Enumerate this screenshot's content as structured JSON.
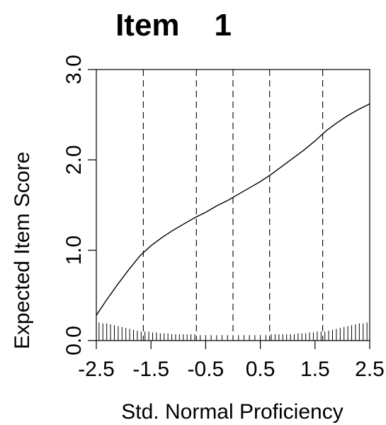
{
  "chart_data": {
    "type": "line",
    "title": "Item    1",
    "xlabel": "Std. Normal Proficiency",
    "ylabel": "Expected Item Score",
    "xlim": [
      -2.5,
      2.5
    ],
    "ylim": [
      0.0,
      3.0
    ],
    "x_ticks": [
      -2.5,
      -1.5,
      -0.5,
      0.5,
      1.5,
      2.5
    ],
    "x_tick_labels": [
      "-2.5",
      "-1.5",
      "-0.5",
      "0.5",
      "1.5",
      "2.5"
    ],
    "y_ticks": [
      0.0,
      1.0,
      2.0,
      3.0
    ],
    "y_tick_labels": [
      "0.0",
      "1.0",
      "2.0",
      "3.0"
    ],
    "grid": false,
    "reference_lines_x": [
      -1.64,
      -0.67,
      0.0,
      0.67,
      1.64
    ],
    "series": [
      {
        "x": [
          -2.5,
          -2.3,
          -2.1,
          -1.9,
          -1.7,
          -1.5,
          -1.3,
          -1.1,
          -0.9,
          -0.7,
          -0.5,
          -0.3,
          -0.1,
          0.1,
          0.3,
          0.5,
          0.7,
          0.9,
          1.1,
          1.3,
          1.5,
          1.7,
          1.9,
          2.1,
          2.3,
          2.5
        ],
        "y": [
          0.28,
          0.46,
          0.63,
          0.79,
          0.94,
          1.05,
          1.14,
          1.22,
          1.29,
          1.36,
          1.42,
          1.49,
          1.55,
          1.62,
          1.69,
          1.76,
          1.84,
          1.93,
          2.02,
          2.11,
          2.21,
          2.32,
          2.41,
          2.49,
          2.56,
          2.62
        ]
      }
    ],
    "rug": {
      "x": [
        -2.45,
        -2.38,
        -2.31,
        -2.24,
        -2.17,
        -2.1,
        -2.03,
        -1.96,
        -1.89,
        -1.82,
        -1.75,
        -1.68,
        -1.61,
        -1.54,
        -1.47,
        -1.4,
        -1.33,
        -1.26,
        -1.19,
        -1.12,
        -1.05,
        -0.98,
        -0.91,
        -0.84,
        -0.77,
        -0.7,
        -0.6,
        -0.5,
        -0.4,
        -0.3,
        -0.2,
        -0.1,
        0.0,
        0.1,
        0.2,
        0.3,
        0.4,
        0.5,
        0.6,
        0.7,
        0.77,
        0.84,
        0.91,
        0.98,
        1.05,
        1.12,
        1.19,
        1.26,
        1.33,
        1.4,
        1.47,
        1.54,
        1.61,
        1.68,
        1.75,
        1.82,
        1.89,
        1.96,
        2.03,
        2.1,
        2.17,
        2.24,
        2.31,
        2.38,
        2.45
      ],
      "y_top": [
        0.2,
        0.19,
        0.19,
        0.18,
        0.17,
        0.16,
        0.15,
        0.14,
        0.13,
        0.12,
        0.11,
        0.1,
        0.1,
        0.1,
        0.09,
        0.09,
        0.08,
        0.08,
        0.08,
        0.07,
        0.07,
        0.07,
        0.07,
        0.07,
        0.07,
        0.07,
        0.06,
        0.06,
        0.06,
        0.06,
        0.06,
        0.06,
        0.06,
        0.06,
        0.06,
        0.06,
        0.06,
        0.06,
        0.06,
        0.07,
        0.07,
        0.07,
        0.07,
        0.07,
        0.07,
        0.07,
        0.08,
        0.08,
        0.08,
        0.09,
        0.09,
        0.1,
        0.1,
        0.1,
        0.11,
        0.12,
        0.13,
        0.14,
        0.15,
        0.16,
        0.17,
        0.18,
        0.19,
        0.19,
        0.2
      ]
    }
  }
}
